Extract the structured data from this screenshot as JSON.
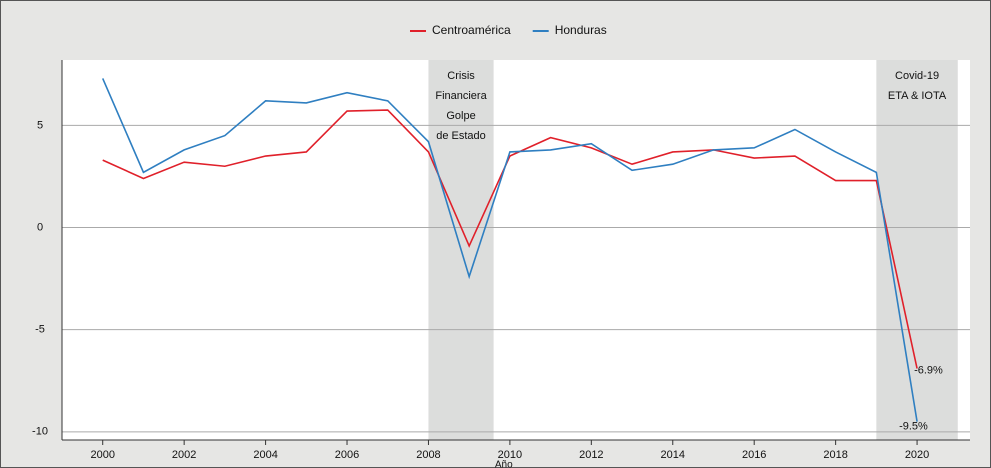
{
  "chart_data": {
    "type": "line",
    "x_label": "Año",
    "x": [
      2000,
      2001,
      2002,
      2003,
      2004,
      2005,
      2006,
      2007,
      2008,
      2009,
      2010,
      2011,
      2012,
      2013,
      2014,
      2015,
      2016,
      2017,
      2018,
      2019,
      2020
    ],
    "series": [
      {
        "name": "Centroamérica",
        "color": "#e0202a",
        "values": [
          3.3,
          2.4,
          3.2,
          3.0,
          3.5,
          3.7,
          5.7,
          5.75,
          3.7,
          -0.9,
          3.5,
          4.4,
          3.9,
          3.1,
          3.7,
          3.8,
          3.4,
          3.5,
          2.3,
          2.3,
          -6.9
        ],
        "value_labels": [
          null,
          null,
          null,
          null,
          null,
          null,
          null,
          null,
          null,
          null,
          null,
          null,
          null,
          null,
          null,
          null,
          null,
          null,
          null,
          null,
          "-6.9%"
        ]
      },
      {
        "name": "Honduras",
        "color": "#2f7fc1",
        "values": [
          7.3,
          2.7,
          3.8,
          4.5,
          6.2,
          6.1,
          6.6,
          6.2,
          4.2,
          -2.4,
          3.7,
          3.8,
          4.1,
          2.8,
          3.1,
          3.8,
          3.9,
          4.8,
          3.7,
          2.7,
          -9.5
        ],
        "value_labels": [
          null,
          null,
          null,
          null,
          null,
          null,
          null,
          null,
          null,
          null,
          null,
          null,
          null,
          null,
          null,
          null,
          null,
          null,
          null,
          null,
          "-9.5%"
        ]
      }
    ],
    "shaded_regions": [
      {
        "from": 2008,
        "to": 2009.6,
        "labels": [
          "Crisis",
          "Financiera",
          "Golpe",
          "de Estado"
        ]
      },
      {
        "from": 2019,
        "to": 2021,
        "labels": [
          "Covid-19",
          "ETA & IOTA"
        ]
      }
    ],
    "xlim": [
      1999,
      2021.3
    ],
    "xticks": [
      2000,
      2002,
      2004,
      2006,
      2008,
      2010,
      2012,
      2014,
      2016,
      2018,
      2020
    ],
    "ylim": [
      -10.4,
      8.2
    ],
    "yticks": [
      -10,
      -5,
      0,
      5
    ],
    "grid": true,
    "legend": "top"
  }
}
